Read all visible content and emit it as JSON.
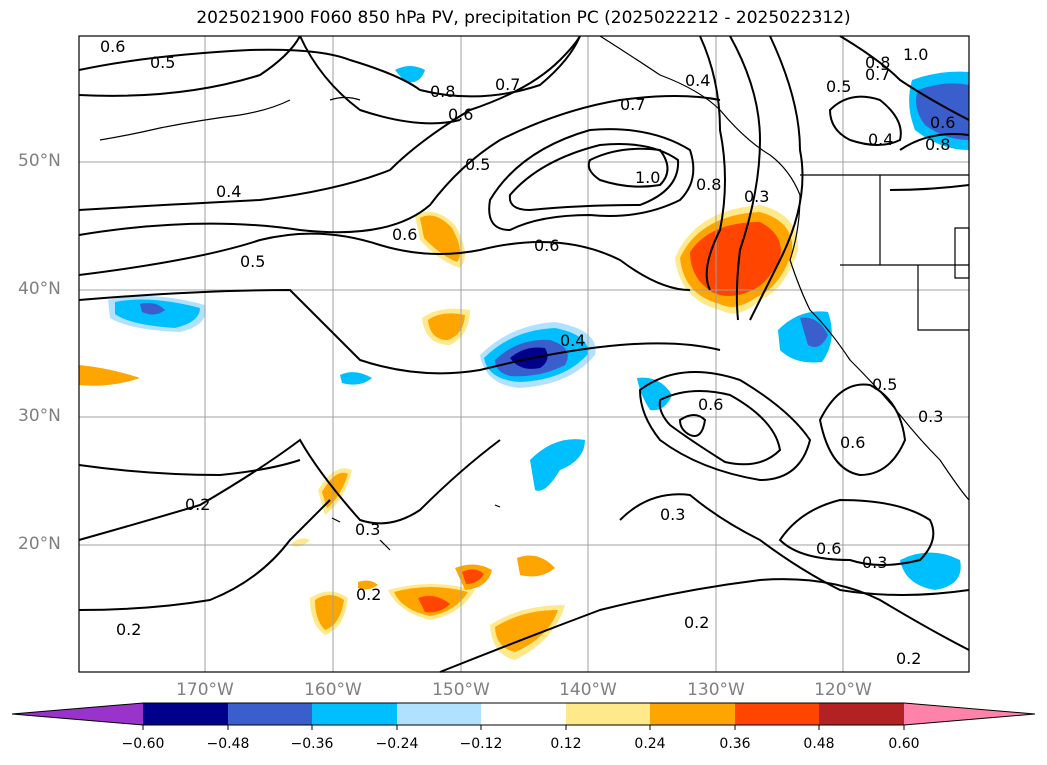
{
  "title": "2025021900 F060 850 hPa PV, precipitation PC (2025022212 - 2025022312)",
  "lat_labels": [
    "50°N",
    "40°N",
    "30°N",
    "20°N"
  ],
  "lon_labels": [
    "170°W",
    "160°W",
    "150°W",
    "140°W",
    "130°W",
    "120°W"
  ],
  "contour_labels": [
    "0.6",
    "0.5",
    "0.8",
    "0.7",
    "0.6",
    "0.4",
    "0.7",
    "0.8",
    "0.7",
    "1.0",
    "0.5",
    "0.4",
    "0.6",
    "0.8",
    "0.5",
    "1.0",
    "0.4",
    "0.6",
    "0.8",
    "0.3",
    "0.6",
    "0.5",
    "0.4",
    "0.6",
    "0.5",
    "0.6",
    "0.3",
    "0.3",
    "0.2",
    "0.3",
    "0.2",
    "0.3",
    "0.6",
    "0.2",
    "0.2",
    "0.2",
    "0.6"
  ],
  "colorbar": {
    "ticks": [
      "−0.60",
      "−0.48",
      "−0.36",
      "−0.24",
      "−0.12",
      "0.12",
      "0.24",
      "0.36",
      "0.48",
      "0.60"
    ],
    "colors": [
      "#9a33cc",
      "#00008b",
      "#3a5fcd",
      "#00bfff",
      "#b0e2ff",
      "#ffffff",
      "#ffe98a",
      "#ffa500",
      "#ff4500",
      "#b22222",
      "#ff82ab"
    ]
  },
  "field_colors": {
    "blue_dark": "#00008b",
    "blue": "#3a5fcd",
    "cyan": "#00bfff",
    "light_blue": "#b0e2ff",
    "yellow": "#ffe98a",
    "orange": "#ffa500",
    "red_orange": "#ff4500"
  }
}
